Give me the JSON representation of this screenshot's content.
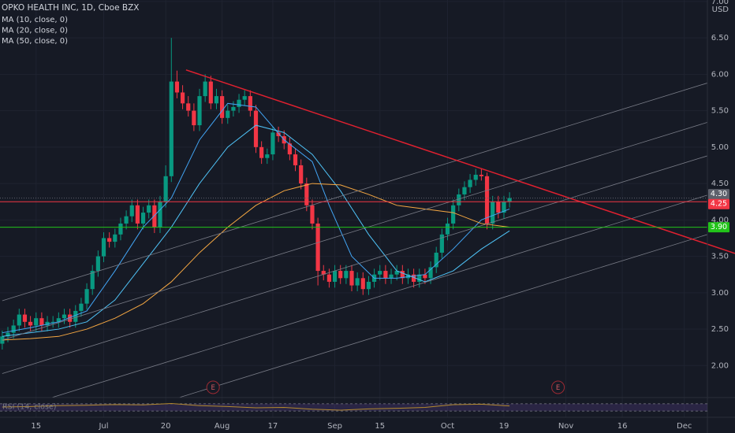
{
  "chart_data": {
    "type": "candlestick",
    "title": "OPKO HEALTH INC, 1D, Cboe BZX",
    "currency": "USD",
    "xlim": [
      -0.4,
      125.1
    ],
    "ylim": [
      1.56,
      7.02
    ],
    "yticks": [
      {
        "value": 2,
        "label": "2.00"
      },
      {
        "value": 2.5,
        "label": "2.50"
      },
      {
        "value": 3,
        "label": "3.00"
      },
      {
        "value": 3.5,
        "label": "3.50"
      },
      {
        "value": 4,
        "label": "4.00"
      },
      {
        "value": 4.5,
        "label": "4.50"
      },
      {
        "value": 5,
        "label": "5.00"
      },
      {
        "value": 5.5,
        "label": "5.50"
      },
      {
        "value": 6,
        "label": "6.00"
      },
      {
        "value": 6.5,
        "label": "6.50"
      },
      {
        "value": 7,
        "label": "7.00"
      }
    ],
    "xticks": [
      {
        "value": 6,
        "label": "15"
      },
      {
        "value": 18,
        "label": "Jul"
      },
      {
        "value": 29,
        "label": "20"
      },
      {
        "value": 39,
        "label": "Aug"
      },
      {
        "value": 48,
        "label": "17"
      },
      {
        "value": 59,
        "label": "Sep"
      },
      {
        "value": 67,
        "label": "15"
      },
      {
        "value": 79,
        "label": "Oct"
      },
      {
        "value": 89,
        "label": "19"
      },
      {
        "value": 100,
        "label": "Nov"
      },
      {
        "value": 110,
        "label": "16"
      },
      {
        "value": 121,
        "label": "Dec"
      }
    ],
    "up_color": "#089981",
    "down_color": "#f23645",
    "x": [
      0,
      1,
      2,
      3,
      4,
      5,
      6,
      7,
      8,
      9,
      10,
      11,
      12,
      13,
      14,
      15,
      16,
      17,
      18,
      19,
      20,
      21,
      22,
      23,
      24,
      25,
      26,
      27,
      28,
      29,
      30,
      31,
      32,
      33,
      34,
      35,
      36,
      37,
      38,
      39,
      40,
      41,
      42,
      43,
      44,
      45,
      46,
      47,
      48,
      49,
      50,
      51,
      52,
      53,
      54,
      55,
      56,
      57,
      58,
      59,
      60,
      61,
      62,
      63,
      64,
      65,
      66,
      67,
      68,
      69,
      70,
      71,
      72,
      73,
      74,
      75,
      76,
      77,
      78,
      79,
      80,
      81,
      82,
      83,
      84,
      85,
      86,
      87,
      88,
      89,
      90
    ],
    "open": [
      2.3,
      2.4,
      2.45,
      2.55,
      2.7,
      2.6,
      2.55,
      2.65,
      2.55,
      2.6,
      2.6,
      2.65,
      2.7,
      2.6,
      2.75,
      2.85,
      3.05,
      3.3,
      3.5,
      3.75,
      3.7,
      3.8,
      3.95,
      4.05,
      4.2,
      3.95,
      4.1,
      4.2,
      3.9,
      4.25,
      4.6,
      5.9,
      5.75,
      5.6,
      5.5,
      5.3,
      5.7,
      5.9,
      5.6,
      5.7,
      5.4,
      5.5,
      5.55,
      5.65,
      5.7,
      5.5,
      5.0,
      4.85,
      4.9,
      5.2,
      5.15,
      5.05,
      4.9,
      4.75,
      4.5,
      4.2,
      3.95,
      3.3,
      3.25,
      3.15,
      3.3,
      3.2,
      3.3,
      3.1,
      3.2,
      3.05,
      3.15,
      3.25,
      3.3,
      3.2,
      3.25,
      3.3,
      3.2,
      3.25,
      3.15,
      3.25,
      3.2,
      3.35,
      3.55,
      3.8,
      3.95,
      4.2,
      4.35,
      4.45,
      4.55,
      4.62,
      4.6,
      3.95,
      4.25,
      4.1,
      4.25
    ],
    "high": [
      2.48,
      2.53,
      2.63,
      2.78,
      2.78,
      2.68,
      2.73,
      2.73,
      2.68,
      2.68,
      2.73,
      2.78,
      2.78,
      2.83,
      2.93,
      3.13,
      3.38,
      3.58,
      3.83,
      3.83,
      3.88,
      4.03,
      4.13,
      4.28,
      4.28,
      4.18,
      4.28,
      4.28,
      4.33,
      4.75,
      6.5,
      6.05,
      5.85,
      5.7,
      5.6,
      5.8,
      6.0,
      5.98,
      5.8,
      5.78,
      5.58,
      5.63,
      5.73,
      5.78,
      5.78,
      5.58,
      5.08,
      4.98,
      5.28,
      5.28,
      5.23,
      5.13,
      4.98,
      4.83,
      4.58,
      4.28,
      4.03,
      3.38,
      3.33,
      3.38,
      3.38,
      3.38,
      3.38,
      3.28,
      3.28,
      3.23,
      3.33,
      3.38,
      3.38,
      3.33,
      3.38,
      3.38,
      3.33,
      3.33,
      3.33,
      3.33,
      3.43,
      3.63,
      3.88,
      4.03,
      4.28,
      4.43,
      4.53,
      4.63,
      4.7,
      4.7,
      4.65,
      4.33,
      4.33,
      4.33,
      4.38
    ],
    "low": [
      2.22,
      2.32,
      2.37,
      2.47,
      2.52,
      2.47,
      2.47,
      2.47,
      2.47,
      2.52,
      2.52,
      2.57,
      2.52,
      2.52,
      2.67,
      2.77,
      2.97,
      3.22,
      3.42,
      3.62,
      3.62,
      3.72,
      3.87,
      3.97,
      3.87,
      3.87,
      4.02,
      3.82,
      3.82,
      4.17,
      4.52,
      5.67,
      5.52,
      5.42,
      5.22,
      5.22,
      5.62,
      5.52,
      5.52,
      5.32,
      5.32,
      5.42,
      5.47,
      5.57,
      5.42,
      4.92,
      4.77,
      4.77,
      4.82,
      5.07,
      4.97,
      4.82,
      4.67,
      4.42,
      4.12,
      3.87,
      3.1,
      3.17,
      3.07,
      3.07,
      3.12,
      3.12,
      3.02,
      3.02,
      2.97,
      2.97,
      3.07,
      3.17,
      3.12,
      3.12,
      3.17,
      3.12,
      3.12,
      3.07,
      3.07,
      3.12,
      3.12,
      3.27,
      3.47,
      3.72,
      3.87,
      4.12,
      4.27,
      4.37,
      4.47,
      4.54,
      3.87,
      3.87,
      4.02,
      4.02,
      4.17
    ],
    "close": [
      2.4,
      2.45,
      2.55,
      2.7,
      2.6,
      2.55,
      2.65,
      2.55,
      2.6,
      2.6,
      2.65,
      2.7,
      2.6,
      2.75,
      2.85,
      3.05,
      3.3,
      3.5,
      3.75,
      3.7,
      3.8,
      3.95,
      4.05,
      4.2,
      3.95,
      4.1,
      4.2,
      3.9,
      4.25,
      4.6,
      5.9,
      5.75,
      5.6,
      5.5,
      5.3,
      5.7,
      5.9,
      5.6,
      5.7,
      5.4,
      5.5,
      5.55,
      5.65,
      5.7,
      5.5,
      5.0,
      4.85,
      4.9,
      5.2,
      5.15,
      5.05,
      4.9,
      4.75,
      4.5,
      4.2,
      3.95,
      3.3,
      3.25,
      3.15,
      3.3,
      3.2,
      3.3,
      3.1,
      3.2,
      3.05,
      3.15,
      3.25,
      3.3,
      3.2,
      3.25,
      3.3,
      3.2,
      3.25,
      3.15,
      3.25,
      3.2,
      3.35,
      3.55,
      3.8,
      3.95,
      4.2,
      4.35,
      4.45,
      4.55,
      4.62,
      4.6,
      3.95,
      4.25,
      4.1,
      4.25,
      4.3
    ],
    "series": [
      {
        "name": "MA (10, close, 0)",
        "color": "#42a5f5",
        "x": [
          0,
          5,
          10,
          15,
          20,
          25,
          30,
          35,
          40,
          45,
          50,
          55,
          58,
          62,
          66,
          70,
          75,
          80,
          85,
          90
        ],
        "values": [
          2.45,
          2.52,
          2.6,
          2.75,
          3.3,
          3.9,
          4.3,
          5.1,
          5.6,
          5.55,
          5.1,
          4.8,
          4.2,
          3.5,
          3.2,
          3.2,
          3.25,
          3.6,
          4.0,
          4.15
        ]
      },
      {
        "name": "MA (20, close, 0)",
        "color": "#4fc3f7",
        "x": [
          0,
          5,
          10,
          15,
          20,
          25,
          30,
          35,
          40,
          45,
          50,
          55,
          60,
          65,
          70,
          75,
          80,
          85,
          90
        ],
        "values": [
          2.4,
          2.45,
          2.5,
          2.6,
          2.9,
          3.4,
          3.9,
          4.5,
          5.0,
          5.3,
          5.2,
          4.9,
          4.4,
          3.8,
          3.3,
          3.15,
          3.3,
          3.6,
          3.85
        ]
      },
      {
        "name": "MA (50, close, 0)",
        "color": "#f5a742",
        "x": [
          0,
          5,
          10,
          15,
          20,
          25,
          30,
          35,
          40,
          45,
          50,
          55,
          60,
          65,
          70,
          75,
          80,
          85,
          90
        ],
        "values": [
          2.35,
          2.37,
          2.4,
          2.5,
          2.65,
          2.85,
          3.15,
          3.55,
          3.9,
          4.2,
          4.4,
          4.5,
          4.48,
          4.35,
          4.2,
          4.15,
          4.1,
          3.95,
          3.9
        ]
      }
    ],
    "trend_lines": [
      {
        "color": "#787b86",
        "x": [
          0,
          125.1
        ],
        "y": [
          2.89,
          5.88
        ]
      },
      {
        "color": "#787b86",
        "x": [
          0,
          125.1
        ],
        "y": [
          2.35,
          5.34
        ]
      },
      {
        "color": "#787b86",
        "x": [
          0,
          125.1
        ],
        "y": [
          1.89,
          4.88
        ]
      },
      {
        "color": "#787b86",
        "x": [
          0,
          125.1
        ],
        "y": [
          1.35,
          4.34
        ]
      },
      {
        "color": "#787b86",
        "x": [
          0,
          125.1
        ],
        "y": [
          0.81,
          3.8
        ]
      },
      {
        "color": "#e0202f",
        "x": [
          32.6,
          130
        ],
        "y": [
          6.06,
          3.54
        ]
      }
    ],
    "price_lines": [
      {
        "value": 4.3,
        "label": "4.30",
        "color": "#5d606b"
      },
      {
        "value": 4.25,
        "label": "4.25",
        "color": "#f23645"
      },
      {
        "value": 3.9,
        "label": "3.90",
        "color": "#22c41a"
      }
    ],
    "events": [
      {
        "x": 37.4,
        "label": "E"
      },
      {
        "x": 98.6,
        "label": "E"
      }
    ],
    "rsi": {
      "label": "RSI (14, close)",
      "color": "#b38a2e",
      "band_color": "#7e57c2",
      "ylim": [
        0,
        100
      ],
      "band": [
        30,
        70
      ],
      "x": [
        0,
        5,
        10,
        15,
        20,
        25,
        30,
        35,
        40,
        45,
        50,
        55,
        60,
        65,
        70,
        75,
        80,
        85,
        90
      ],
      "values": [
        52,
        55,
        60,
        62,
        66,
        64,
        72,
        60,
        55,
        48,
        50,
        40,
        35,
        42,
        45,
        50,
        65,
        68,
        58
      ]
    }
  }
}
